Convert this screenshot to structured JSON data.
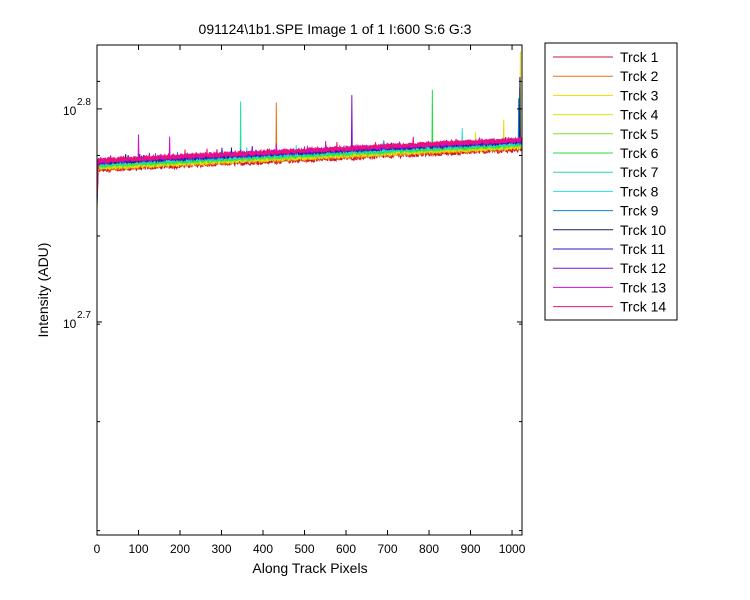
{
  "chart_data": {
    "type": "line",
    "title": "091124\\1b1.SPE  Image 1 of 1  I:600  S:6  G:3",
    "xlabel": "Along Track Pixels",
    "ylabel": "Intensity (ADU)",
    "x_scale": "linear",
    "y_scale": "log",
    "xlim": [
      0,
      1024
    ],
    "ylim_exponent": [
      2.6,
      2.83
    ],
    "x_ticks": [
      0,
      100,
      200,
      300,
      400,
      500,
      600,
      700,
      800,
      900,
      1000
    ],
    "y_ticks": [
      {
        "base": "10",
        "exponent": "2.7",
        "value": 2.7
      },
      {
        "base": "10",
        "exponent": "2.8",
        "value": 2.8
      }
    ],
    "grid": false,
    "legend_position": "outside-right",
    "series": [
      {
        "name": "Trck 1",
        "color": "#d01028",
        "start": 2.7714,
        "end": 2.781,
        "spikes": []
      },
      {
        "name": "Trck 2",
        "color": "#f07010",
        "start": 2.772,
        "end": 2.7818,
        "spikes": [
          {
            "x": 432,
            "y": 2.803
          }
        ]
      },
      {
        "name": "Trck 3",
        "color": "#f0d800",
        "start": 2.7724,
        "end": 2.7822,
        "spikes": [
          {
            "x": 1020,
            "y": 2.827
          },
          {
            "x": 980,
            "y": 2.795
          }
        ]
      },
      {
        "name": "Trck 4",
        "color": "#d8e800",
        "start": 2.7728,
        "end": 2.7826,
        "spikes": [
          {
            "x": 912,
            "y": 2.789
          }
        ]
      },
      {
        "name": "Trck 5",
        "color": "#80e030",
        "start": 2.7732,
        "end": 2.783,
        "spikes": [
          {
            "x": 1018,
            "y": 2.81
          }
        ]
      },
      {
        "name": "Trck 6",
        "color": "#20e040",
        "start": 2.7736,
        "end": 2.7834,
        "spikes": [
          {
            "x": 808,
            "y": 2.809
          }
        ]
      },
      {
        "name": "Trck 7",
        "color": "#20e0a0",
        "start": 2.774,
        "end": 2.7838,
        "spikes": [
          {
            "x": 346,
            "y": 2.8035
          }
        ]
      },
      {
        "name": "Trck 8",
        "color": "#20e0e0",
        "start": 2.7744,
        "end": 2.7842,
        "spikes": [
          {
            "x": 880,
            "y": 2.791
          }
        ]
      },
      {
        "name": "Trck 9",
        "color": "#1080d0",
        "start": 2.7748,
        "end": 2.7846,
        "spikes": [
          {
            "x": 1016,
            "y": 2.805
          }
        ]
      },
      {
        "name": "Trck 10",
        "color": "#102070",
        "start": 2.775,
        "end": 2.7848,
        "spikes": [
          {
            "x": 1019,
            "y": 2.815
          }
        ]
      },
      {
        "name": "Trck 11",
        "color": "#3010d0",
        "start": 2.7752,
        "end": 2.785,
        "spikes": []
      },
      {
        "name": "Trck 12",
        "color": "#8010d0",
        "start": 2.7754,
        "end": 2.7852,
        "spikes": [
          {
            "x": 614,
            "y": 2.8065
          }
        ]
      },
      {
        "name": "Trck 13",
        "color": "#d010d0",
        "start": 2.7756,
        "end": 2.7854,
        "spikes": [
          {
            "x": 100,
            "y": 2.788
          },
          {
            "x": 175,
            "y": 2.787
          }
        ]
      },
      {
        "name": "Trck 14",
        "color": "#f01070",
        "start": 2.7758,
        "end": 2.7856,
        "spikes": []
      }
    ]
  }
}
